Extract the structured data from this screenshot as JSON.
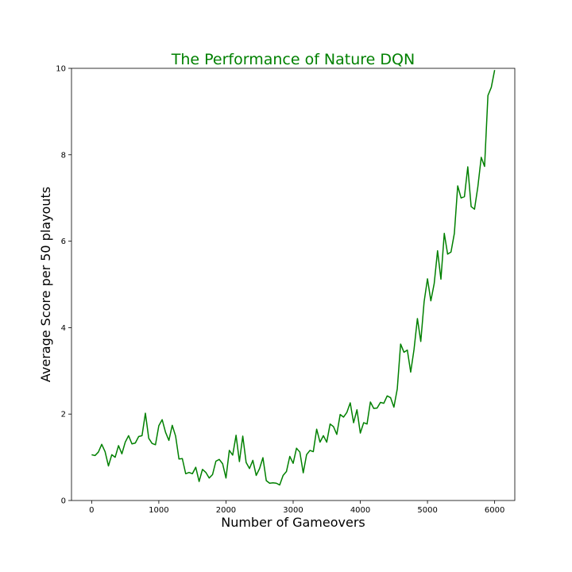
{
  "chart_data": {
    "type": "line",
    "title": "The Performance of Nature DQN",
    "xlabel": "Number of Gameovers",
    "ylabel": "Average Score per 50 playouts",
    "xlim": [
      -300,
      6300
    ],
    "ylim": [
      0,
      10
    ],
    "xticks": [
      0,
      1000,
      2000,
      3000,
      4000,
      5000,
      6000
    ],
    "yticks": [
      0,
      2,
      4,
      6,
      8,
      10
    ],
    "grid": false,
    "legend": "none",
    "color": "#008000",
    "series": [
      {
        "x": [
          0,
          50,
          100,
          150,
          200,
          250,
          300,
          350,
          400,
          450,
          500,
          550,
          600,
          650,
          700,
          750,
          800,
          850,
          900,
          950,
          1000,
          1050,
          1100,
          1150,
          1200,
          1250,
          1300,
          1350,
          1400,
          1450,
          1500,
          1550,
          1600,
          1650,
          1700,
          1750,
          1800,
          1850,
          1900,
          1950,
          2000,
          2050,
          2100,
          2150,
          2200,
          2250,
          2300,
          2350,
          2400,
          2450,
          2500,
          2550,
          2600,
          2650,
          2700,
          2750,
          2800,
          2850,
          2900,
          2950,
          3000,
          3050,
          3100,
          3150,
          3200,
          3250,
          3300,
          3350,
          3400,
          3450,
          3500,
          3550,
          3600,
          3650,
          3700,
          3750,
          3800,
          3850,
          3900,
          3950,
          4000,
          4050,
          4100,
          4150,
          4200,
          4250,
          4300,
          4350,
          4400,
          4450,
          4500,
          4550,
          4600,
          4650,
          4700,
          4750,
          4800,
          4850,
          4900,
          4950,
          5000,
          5050,
          5100,
          5150,
          5200,
          5250,
          5300,
          5350,
          5400,
          5450,
          5500,
          5550,
          5600,
          5650,
          5700,
          5750,
          5800,
          5850,
          5900,
          5950,
          6000
        ],
        "y": [
          1.06,
          1.04,
          1.12,
          1.3,
          1.13,
          0.8,
          1.06,
          1.0,
          1.27,
          1.08,
          1.35,
          1.5,
          1.31,
          1.33,
          1.48,
          1.5,
          2.02,
          1.44,
          1.32,
          1.29,
          1.73,
          1.87,
          1.58,
          1.39,
          1.74,
          1.49,
          0.96,
          0.97,
          0.62,
          0.65,
          0.62,
          0.77,
          0.44,
          0.72,
          0.65,
          0.52,
          0.6,
          0.91,
          0.95,
          0.85,
          0.52,
          1.16,
          1.05,
          1.51,
          0.9,
          1.49,
          0.88,
          0.74,
          0.93,
          0.58,
          0.74,
          0.99,
          0.46,
          0.4,
          0.41,
          0.4,
          0.36,
          0.58,
          0.67,
          1.02,
          0.86,
          1.21,
          1.12,
          0.64,
          1.06,
          1.16,
          1.13,
          1.65,
          1.35,
          1.5,
          1.35,
          1.77,
          1.71,
          1.53,
          1.99,
          1.93,
          2.04,
          2.26,
          1.8,
          2.1,
          1.56,
          1.8,
          1.77,
          2.28,
          2.13,
          2.14,
          2.27,
          2.25,
          2.42,
          2.38,
          2.16,
          2.58,
          3.62,
          3.43,
          3.48,
          2.97,
          3.5,
          4.21,
          3.68,
          4.6,
          5.13,
          4.62,
          5.02,
          5.78,
          5.12,
          6.18,
          5.7,
          5.75,
          6.18,
          7.28,
          7.0,
          7.03,
          7.72,
          6.8,
          6.74,
          7.26,
          7.94,
          7.73,
          9.37,
          9.56,
          9.96
        ]
      }
    ]
  }
}
